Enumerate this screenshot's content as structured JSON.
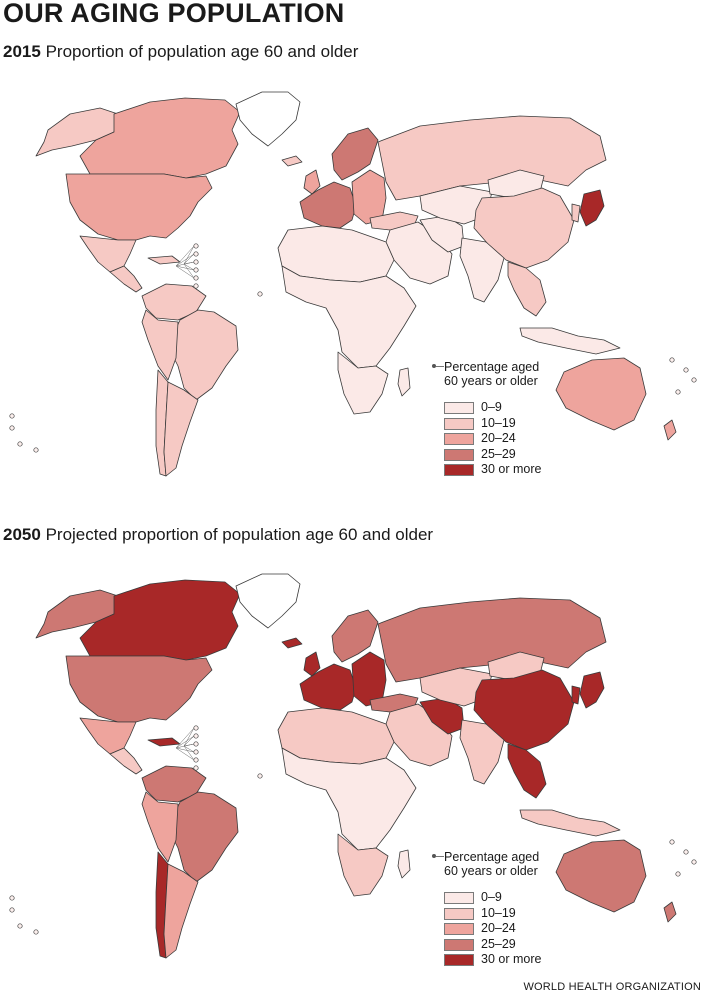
{
  "title": "OUR AGING POPULATION",
  "maps": [
    {
      "year": "2015",
      "subtitle": "Proportion of population age 60 and older"
    },
    {
      "year": "2050",
      "subtitle": "Projected proportion of population age 60 and older"
    }
  ],
  "legend": {
    "title_line1": "Percentage aged",
    "title_line2": "60 years or older",
    "items": [
      {
        "label": "0–9",
        "color": "#fbe9e7"
      },
      {
        "label": "10–19",
        "color": "#f6c9c4"
      },
      {
        "label": "20–24",
        "color": "#eea49d"
      },
      {
        "label": "25–29",
        "color": "#cd7873"
      },
      {
        "label": "30 or more",
        "color": "#a82828"
      }
    ]
  },
  "source": "WORLD HEALTH ORGANIZATION",
  "regions": [
    {
      "name": "Alaska",
      "class_2015": 1,
      "class_2050": 3
    },
    {
      "name": "Canada",
      "class_2015": 2,
      "class_2050": 4
    },
    {
      "name": "United States",
      "class_2015": 2,
      "class_2050": 3
    },
    {
      "name": "Greenland",
      "class_2015": -1,
      "class_2050": -1
    },
    {
      "name": "Mexico",
      "class_2015": 1,
      "class_2050": 2
    },
    {
      "name": "Central America",
      "class_2015": 1,
      "class_2050": 1
    },
    {
      "name": "Cuba",
      "class_2015": 1,
      "class_2050": 4
    },
    {
      "name": "Colombia & Venezuela",
      "class_2015": 1,
      "class_2050": 3
    },
    {
      "name": "Brazil",
      "class_2015": 1,
      "class_2050": 3
    },
    {
      "name": "Peru & Bolivia",
      "class_2015": 1,
      "class_2050": 2
    },
    {
      "name": "Chile",
      "class_2015": 1,
      "class_2050": 4
    },
    {
      "name": "Argentina",
      "class_2015": 1,
      "class_2050": 2
    },
    {
      "name": "Iceland",
      "class_2015": 1,
      "class_2050": 4
    },
    {
      "name": "United Kingdom",
      "class_2015": 2,
      "class_2050": 4
    },
    {
      "name": "Scandinavia",
      "class_2015": 3,
      "class_2050": 3
    },
    {
      "name": "Western Europe",
      "class_2015": 3,
      "class_2050": 4
    },
    {
      "name": "Eastern Europe",
      "class_2015": 2,
      "class_2050": 4
    },
    {
      "name": "Russia",
      "class_2015": 1,
      "class_2050": 3
    },
    {
      "name": "Turkey",
      "class_2015": 1,
      "class_2050": 3
    },
    {
      "name": "Middle East",
      "class_2015": 0,
      "class_2050": 1
    },
    {
      "name": "Iran",
      "class_2015": 0,
      "class_2050": 4
    },
    {
      "name": "Central Asia",
      "class_2015": 0,
      "class_2050": 1
    },
    {
      "name": "Mongolia",
      "class_2015": 0,
      "class_2050": 1
    },
    {
      "name": "China",
      "class_2015": 1,
      "class_2050": 4
    },
    {
      "name": "India",
      "class_2015": 0,
      "class_2050": 1
    },
    {
      "name": "Southeast Asia",
      "class_2015": 1,
      "class_2050": 4
    },
    {
      "name": "Japan",
      "class_2015": 4,
      "class_2050": 4
    },
    {
      "name": "Korea",
      "class_2015": 1,
      "class_2050": 4
    },
    {
      "name": "North Africa",
      "class_2015": 0,
      "class_2050": 1
    },
    {
      "name": "Sub-Saharan Africa",
      "class_2015": 0,
      "class_2050": 0
    },
    {
      "name": "Southern Africa",
      "class_2015": 0,
      "class_2050": 1
    },
    {
      "name": "Madagascar",
      "class_2015": 0,
      "class_2050": 0
    },
    {
      "name": "Indonesia",
      "class_2015": 0,
      "class_2050": 1
    },
    {
      "name": "Australia",
      "class_2015": 2,
      "class_2050": 3
    },
    {
      "name": "New Zealand",
      "class_2015": 2,
      "class_2050": 3
    }
  ]
}
